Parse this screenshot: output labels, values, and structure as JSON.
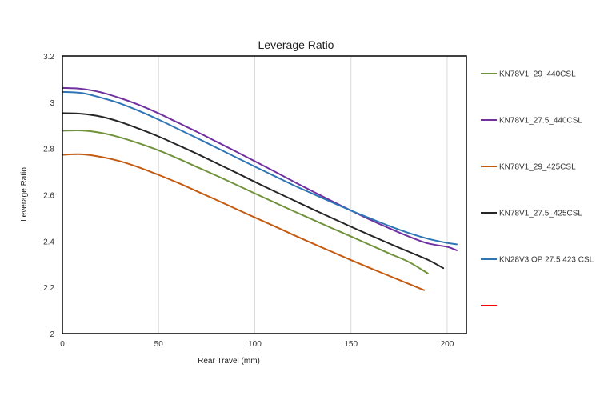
{
  "chart_data": {
    "type": "line",
    "title": "Leverage Ratio",
    "xlabel": "Rear Travel (mm)",
    "ylabel": "Leverage Ratio",
    "xlim": [
      0,
      210
    ],
    "ylim": [
      2.0,
      3.2
    ],
    "x_ticks": [
      "0",
      "50",
      "100",
      "150",
      "200"
    ],
    "y_ticks": [
      "2",
      "2.2",
      "2.4",
      "2.6",
      "2.8",
      "3",
      "3.2"
    ],
    "grid": "vertical",
    "legend_position": "right",
    "series": [
      {
        "name": "KN78V1_29_440CSL",
        "color": "#70923b",
        "x": [
          0,
          10,
          20,
          30,
          40,
          50,
          60,
          70,
          80,
          90,
          100,
          110,
          120,
          130,
          140,
          150,
          160,
          170,
          180,
          190
        ],
        "y": [
          2.877,
          2.878,
          2.868,
          2.848,
          2.822,
          2.792,
          2.757,
          2.72,
          2.683,
          2.645,
          2.606,
          2.568,
          2.53,
          2.493,
          2.456,
          2.42,
          2.383,
          2.346,
          2.31,
          2.26
        ]
      },
      {
        "name": "KN78V1_27.5_440CSL",
        "color": "#7030a0",
        "x": [
          0,
          10,
          20,
          30,
          40,
          50,
          60,
          70,
          80,
          90,
          100,
          110,
          120,
          130,
          140,
          150,
          160,
          170,
          180,
          190,
          200,
          205
        ],
        "y": [
          3.062,
          3.058,
          3.043,
          3.018,
          2.988,
          2.952,
          2.912,
          2.872,
          2.83,
          2.788,
          2.745,
          2.702,
          2.658,
          2.615,
          2.573,
          2.532,
          2.492,
          2.455,
          2.42,
          2.39,
          2.375,
          2.36
        ]
      },
      {
        "name": "KN78V1_29_425CSL",
        "color": "#c55a11",
        "x": [
          0,
          10,
          20,
          30,
          40,
          50,
          60,
          70,
          80,
          90,
          100,
          110,
          120,
          130,
          140,
          150,
          160,
          170,
          180,
          188
        ],
        "y": [
          2.773,
          2.775,
          2.764,
          2.745,
          2.718,
          2.686,
          2.652,
          2.615,
          2.578,
          2.54,
          2.502,
          2.465,
          2.427,
          2.39,
          2.354,
          2.318,
          2.283,
          2.249,
          2.215,
          2.188
        ]
      },
      {
        "name": "KN78V1_27.5_425CSL",
        "color": "#262626",
        "x": [
          0,
          10,
          20,
          30,
          40,
          50,
          60,
          70,
          80,
          90,
          100,
          110,
          120,
          130,
          140,
          150,
          160,
          170,
          180,
          190,
          198
        ],
        "y": [
          2.953,
          2.95,
          2.938,
          2.915,
          2.885,
          2.852,
          2.815,
          2.777,
          2.737,
          2.697,
          2.656,
          2.616,
          2.577,
          2.538,
          2.5,
          2.462,
          2.425,
          2.389,
          2.354,
          2.319,
          2.283
        ]
      },
      {
        "name": "KN28V3 OP 27.5 423 CSL",
        "color": "#2e75b6",
        "x": [
          0,
          10,
          20,
          30,
          40,
          50,
          60,
          70,
          80,
          90,
          100,
          110,
          120,
          130,
          140,
          150,
          160,
          170,
          180,
          190,
          200,
          205
        ],
        "y": [
          3.045,
          3.04,
          3.02,
          2.995,
          2.962,
          2.925,
          2.885,
          2.845,
          2.804,
          2.763,
          2.722,
          2.682,
          2.642,
          2.605,
          2.568,
          2.532,
          2.498,
          2.465,
          2.435,
          2.41,
          2.392,
          2.386
        ]
      },
      {
        "name": "",
        "color": "#ff0000",
        "x": [],
        "y": []
      }
    ]
  }
}
